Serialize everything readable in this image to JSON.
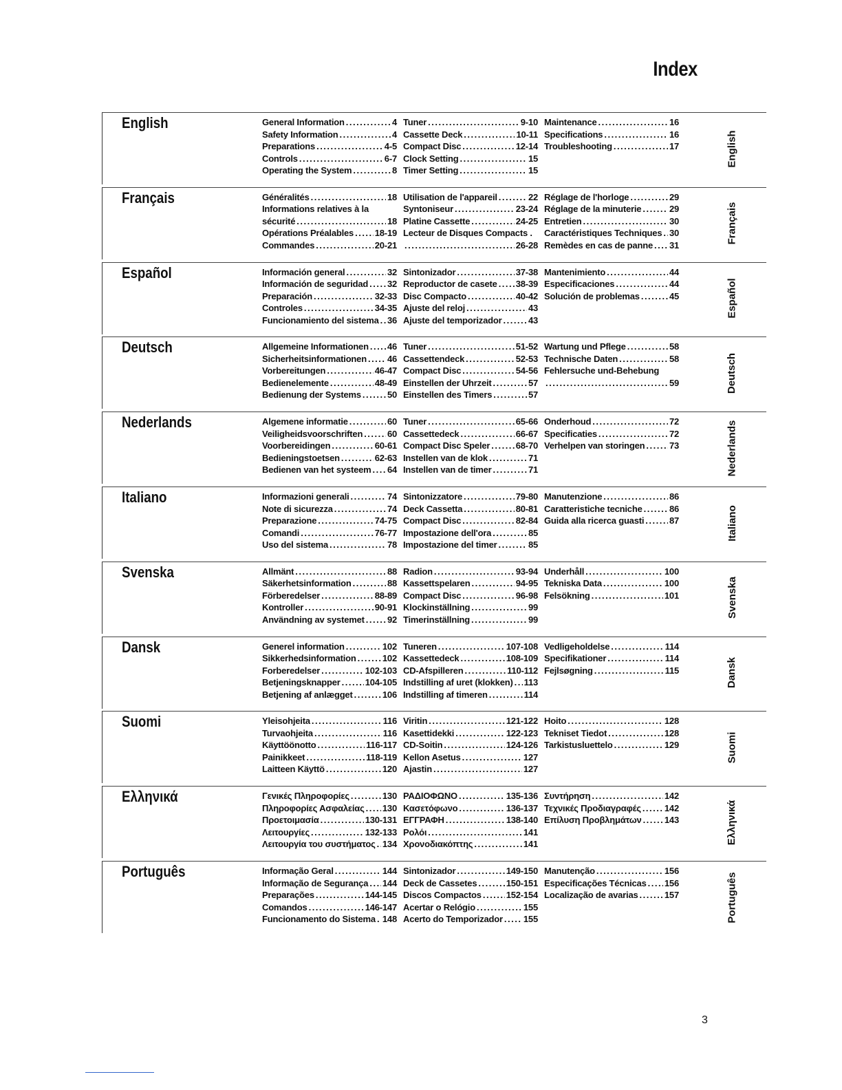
{
  "title": "Index",
  "page_number": "3",
  "sections": [
    {
      "lang": "English",
      "side": "English",
      "cols": [
        [
          {
            "t": "General Information",
            "p": "4"
          },
          {
            "t": "Safety Information",
            "p": "4"
          },
          {
            "t": "Preparations",
            "p": "4-5"
          },
          {
            "t": "Controls",
            "p": "6-7"
          },
          {
            "t": "Operating the System",
            "p": "8"
          }
        ],
        [
          {
            "t": "Tuner",
            "p": "9-10"
          },
          {
            "t": "Cassette Deck",
            "p": "10-11"
          },
          {
            "t": "Compact Disc",
            "p": "12-14"
          },
          {
            "t": "Clock Setting",
            "p": "15"
          },
          {
            "t": "Timer Setting",
            "p": "15"
          }
        ],
        [
          {
            "t": "Maintenance",
            "p": "16"
          },
          {
            "t": "Specifications",
            "p": "16"
          },
          {
            "t": "Troubleshooting",
            "p": "17"
          }
        ]
      ]
    },
    {
      "lang": "Français",
      "side": "Français",
      "cols": [
        [
          {
            "t": "Généralités",
            "p": "18"
          },
          {
            "t": "Informations relatives à la",
            "p": ""
          },
          {
            "t": "sécurité",
            "p": "18"
          },
          {
            "t": "Opérations Préalables",
            "p": "18-19"
          },
          {
            "t": "Commandes",
            "p": "20-21"
          }
        ],
        [
          {
            "t": "Utilisation de l'appareil",
            "p": "22"
          },
          {
            "t": "Syntoniseur",
            "p": "23-24"
          },
          {
            "t": "Platine Cassette",
            "p": "24-25"
          },
          {
            "t": "Lecteur de Disques Compacts .",
            "p": ""
          },
          {
            "t": "",
            "p": "26-28"
          }
        ],
        [
          {
            "t": "Réglage de l'horloge",
            "p": "29"
          },
          {
            "t": "Réglage de la minuterie",
            "p": "29"
          },
          {
            "t": "Entretien",
            "p": "30"
          },
          {
            "t": "Caractéristiques Techniques",
            "p": "30"
          },
          {
            "t": "Remèdes en cas de panne",
            "p": "31"
          }
        ]
      ]
    },
    {
      "lang": "Español",
      "side": "Español",
      "cols": [
        [
          {
            "t": "Información general",
            "p": "32"
          },
          {
            "t": "Información de seguridad",
            "p": "32"
          },
          {
            "t": "Preparación",
            "p": "32-33"
          },
          {
            "t": "Controles",
            "p": "34-35"
          },
          {
            "t": "Funcionamiento del sistema",
            "p": "36"
          }
        ],
        [
          {
            "t": "Sintonizador",
            "p": "37-38"
          },
          {
            "t": "Reproductor de casete",
            "p": "38-39"
          },
          {
            "t": "Disc Compacto",
            "p": "40-42"
          },
          {
            "t": "Ajuste del reloj",
            "p": "43"
          },
          {
            "t": "Ajuste del temporizador",
            "p": "43"
          }
        ],
        [
          {
            "t": "Mantenimiento",
            "p": "44"
          },
          {
            "t": "Especificaciones",
            "p": "44"
          },
          {
            "t": "Solución de problemas",
            "p": "45"
          }
        ]
      ]
    },
    {
      "lang": "Deutsch",
      "side": "Deutsch",
      "cols": [
        [
          {
            "t": "Allgemeine Informationen",
            "p": "46"
          },
          {
            "t": "Sicherheitsinformationen",
            "p": "46"
          },
          {
            "t": "Vorbereitungen",
            "p": "46-47"
          },
          {
            "t": "Bedienelemente",
            "p": "48-49"
          },
          {
            "t": "Bedienung der Systems",
            "p": "50"
          }
        ],
        [
          {
            "t": "Tuner",
            "p": "51-52"
          },
          {
            "t": "Cassettendeck",
            "p": "52-53"
          },
          {
            "t": "Compact Disc",
            "p": "54-56"
          },
          {
            "t": "Einstellen der Uhrzeit",
            "p": "57"
          },
          {
            "t": "Einstellen des Timers",
            "p": "57"
          }
        ],
        [
          {
            "t": "Wartung und Pflege",
            "p": "58"
          },
          {
            "t": "Technische Daten",
            "p": "58"
          },
          {
            "t": "Fehlersuche und-Behebung",
            "p": ""
          },
          {
            "t": "",
            "p": "59"
          }
        ]
      ]
    },
    {
      "lang": "Nederlands",
      "side": "Nederlands",
      "cols": [
        [
          {
            "t": "Algemene informatie",
            "p": "60"
          },
          {
            "t": "Veiligheidsvoorschriften",
            "p": "60"
          },
          {
            "t": "Voorbereidingen",
            "p": "60-61"
          },
          {
            "t": "Bedieningstoetsen",
            "p": "62-63"
          },
          {
            "t": "Bedienen van het systeem",
            "p": "64"
          }
        ],
        [
          {
            "t": "Tuner",
            "p": "65-66"
          },
          {
            "t": "Cassettedeck",
            "p": "66-67"
          },
          {
            "t": "Compact Disc Speler",
            "p": "68-70"
          },
          {
            "t": "Instellen van de klok",
            "p": "71"
          },
          {
            "t": "Instellen van de timer",
            "p": "71"
          }
        ],
        [
          {
            "t": "Onderhoud",
            "p": "72"
          },
          {
            "t": "Specificaties",
            "p": "72"
          },
          {
            "t": "Verhelpen van storingen",
            "p": "73"
          }
        ]
      ]
    },
    {
      "lang": "Italiano",
      "side": "Italiano",
      "cols": [
        [
          {
            "t": "Informazioni generali",
            "p": "74"
          },
          {
            "t": "Note di sicurezza",
            "p": "74"
          },
          {
            "t": "Preparazione",
            "p": "74-75"
          },
          {
            "t": "Comandi",
            "p": "76-77"
          },
          {
            "t": "Uso del sistema",
            "p": "78"
          }
        ],
        [
          {
            "t": "Sintonizzatore",
            "p": "79-80"
          },
          {
            "t": "Deck Cassetta",
            "p": "80-81"
          },
          {
            "t": "Compact Disc",
            "p": "82-84"
          },
          {
            "t": "Impostazione dell'ora",
            "p": "85"
          },
          {
            "t": "Impostazione del timer",
            "p": "85"
          }
        ],
        [
          {
            "t": "Manutenzione",
            "p": "86"
          },
          {
            "t": "Caratteristiche tecniche",
            "p": "86"
          },
          {
            "t": "Guida alla ricerca guasti",
            "p": "87"
          }
        ]
      ]
    },
    {
      "lang": "Svenska",
      "side": "Svenska",
      "cols": [
        [
          {
            "t": "Allmänt",
            "p": "88"
          },
          {
            "t": "Säkerhetsinformation",
            "p": "88"
          },
          {
            "t": "Förberedelser",
            "p": "88-89"
          },
          {
            "t": "Kontroller",
            "p": "90-91"
          },
          {
            "t": "Användning av systemet",
            "p": "92"
          }
        ],
        [
          {
            "t": "Radion",
            "p": "93-94"
          },
          {
            "t": "Kassettspelaren",
            "p": "94-95"
          },
          {
            "t": "Compact Disc",
            "p": "96-98"
          },
          {
            "t": "Klockinställning",
            "p": "99"
          },
          {
            "t": "Timerinställning",
            "p": "99"
          }
        ],
        [
          {
            "t": "Underhåll",
            "p": "100"
          },
          {
            "t": "Tekniska Data",
            "p": "100"
          },
          {
            "t": "Felsökning",
            "p": "101"
          }
        ]
      ]
    },
    {
      "lang": "Dansk",
      "side": "Dansk",
      "cols": [
        [
          {
            "t": "Generel information",
            "p": "102"
          },
          {
            "t": "Sikkerhedsinformation",
            "p": "102"
          },
          {
            "t": "Forberedelser",
            "p": "102-103"
          },
          {
            "t": "Betjeningsknapper",
            "p": "104-105"
          },
          {
            "t": "Betjening af anlægget",
            "p": "106"
          }
        ],
        [
          {
            "t": "Tuneren",
            "p": "107-108"
          },
          {
            "t": "Kassettedeck",
            "p": "108-109"
          },
          {
            "t": "CD-Afspilleren",
            "p": "110-112"
          },
          {
            "t": "Indstilling af uret (klokken)",
            "p": "113"
          },
          {
            "t": "Indstilling af timeren",
            "p": "114"
          }
        ],
        [
          {
            "t": "Vedligeholdelse",
            "p": "114"
          },
          {
            "t": "Specifikationer",
            "p": "114"
          },
          {
            "t": "Fejlsøgning",
            "p": "115"
          }
        ]
      ]
    },
    {
      "lang": "Suomi",
      "side": "Suomi",
      "cols": [
        [
          {
            "t": "Yleisohjeita",
            "p": "116"
          },
          {
            "t": "Turvaohjeita",
            "p": "116"
          },
          {
            "t": "Käyttöönotto",
            "p": "116-117"
          },
          {
            "t": "Painikkeet",
            "p": "118-119"
          },
          {
            "t": "Laitteen Käyttö",
            "p": "120"
          }
        ],
        [
          {
            "t": "Viritin",
            "p": "121-122"
          },
          {
            "t": "Kasettidekki",
            "p": "122-123"
          },
          {
            "t": "CD-Soitin",
            "p": "124-126"
          },
          {
            "t": "Kellon Asetus",
            "p": "127"
          },
          {
            "t": "Ajastin",
            "p": "127"
          }
        ],
        [
          {
            "t": "Hoito",
            "p": "128"
          },
          {
            "t": "Tekniset Tiedot",
            "p": "128"
          },
          {
            "t": "Tarkistusluettelo",
            "p": "129"
          }
        ]
      ]
    },
    {
      "lang": "Ελληνικά",
      "side": "Ελληνικά",
      "cols": [
        [
          {
            "t": "Γενικές Πληροφορίες",
            "p": "130"
          },
          {
            "t": "Πληροφορίες Ασφαλείας",
            "p": "130"
          },
          {
            "t": "Προετοιμασία",
            "p": "130-131"
          },
          {
            "t": "Λειτουργίες",
            "p": "132-133"
          },
          {
            "t": "Λειτουργία του συστήματος",
            "p": "134"
          }
        ],
        [
          {
            "t": "ΡΑΔΙΟΦΩΝΟ",
            "p": "135-136"
          },
          {
            "t": "Κασετόφωνο",
            "p": "136-137"
          },
          {
            "t": "ΕΓΓΡΑΦΗ",
            "p": "138-140"
          },
          {
            "t": "Ρολόι",
            "p": "141"
          },
          {
            "t": "Χρονοδιακόπτης",
            "p": "141"
          }
        ],
        [
          {
            "t": "Συντήρηση",
            "p": "142"
          },
          {
            "t": "Τεχνικές Προδιαγραφές",
            "p": "142"
          },
          {
            "t": "Επίλυση Προβλημάτων",
            "p": "143"
          }
        ]
      ]
    },
    {
      "lang": "Português",
      "side": "Português",
      "cols": [
        [
          {
            "t": "Informação Geral",
            "p": "144"
          },
          {
            "t": "Informação de Segurança",
            "p": "144"
          },
          {
            "t": "Preparações",
            "p": "144-145"
          },
          {
            "t": "Comandos",
            "p": "146-147"
          },
          {
            "t": "Funcionamento do Sistema",
            "p": "148"
          }
        ],
        [
          {
            "t": "Sintonizador",
            "p": "149-150"
          },
          {
            "t": "Deck de Cassetes",
            "p": "150-151"
          },
          {
            "t": "Discos Compactos",
            "p": "152-154"
          },
          {
            "t": "Acertar o Relógio",
            "p": "155"
          },
          {
            "t": "Acerto do Temporizador",
            "p": "155"
          }
        ],
        [
          {
            "t": "Manutenção",
            "p": "156"
          },
          {
            "t": "Especificações Técnicas",
            "p": "156"
          },
          {
            "t": "Localização de avarias",
            "p": "157"
          }
        ]
      ]
    }
  ]
}
